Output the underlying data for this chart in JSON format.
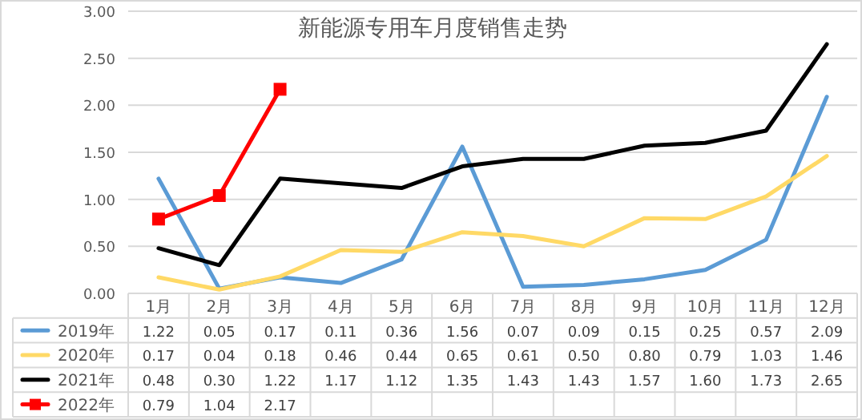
{
  "chart_data": {
    "type": "line",
    "title": "新能源专用车月度销售走势",
    "categories": [
      "1月",
      "2月",
      "3月",
      "4月",
      "5月",
      "6月",
      "7月",
      "8月",
      "9月",
      "10月",
      "11月",
      "12月"
    ],
    "series": [
      {
        "name": "2019年",
        "color": "#5b9bd5",
        "marker": "none",
        "values": [
          1.22,
          0.05,
          0.17,
          0.11,
          0.36,
          1.56,
          0.07,
          0.09,
          0.15,
          0.25,
          0.57,
          2.09
        ],
        "value_labels": [
          "1.22",
          "0.05",
          "0.17",
          "0.11",
          "0.36",
          "1.56",
          "0.07",
          "0.09",
          "0.15",
          "0.25",
          "0.57",
          "2.09"
        ]
      },
      {
        "name": "2020年",
        "color": "#ffd966",
        "marker": "none",
        "values": [
          0.17,
          0.04,
          0.18,
          0.46,
          0.44,
          0.65,
          0.61,
          0.5,
          0.8,
          0.79,
          1.03,
          1.46
        ],
        "value_labels": [
          "0.17",
          "0.04",
          "0.18",
          "0.46",
          "0.44",
          "0.65",
          "0.61",
          "0.50",
          "0.80",
          "0.79",
          "1.03",
          "1.46"
        ]
      },
      {
        "name": "2021年",
        "color": "#000000",
        "marker": "none",
        "values": [
          0.48,
          0.3,
          1.22,
          1.17,
          1.12,
          1.35,
          1.43,
          1.43,
          1.57,
          1.6,
          1.73,
          2.65
        ],
        "value_labels": [
          "0.48",
          "0.30",
          "1.22",
          "1.17",
          "1.12",
          "1.35",
          "1.43",
          "1.43",
          "1.57",
          "1.60",
          "1.73",
          "2.65"
        ]
      },
      {
        "name": "2022年",
        "color": "#ff0000",
        "marker": "square",
        "values": [
          0.79,
          1.04,
          2.17,
          null,
          null,
          null,
          null,
          null,
          null,
          null,
          null,
          null
        ],
        "value_labels": [
          "0.79",
          "1.04",
          "2.17",
          null,
          null,
          null,
          null,
          null,
          null,
          null,
          null,
          null
        ]
      }
    ],
    "ylim": [
      0,
      3
    ],
    "yticks": [
      {
        "value": 0,
        "label": "0.00"
      },
      {
        "value": 0.5,
        "label": "0.50"
      },
      {
        "value": 1,
        "label": "1.00"
      },
      {
        "value": 1.5,
        "label": "1.50"
      },
      {
        "value": 2,
        "label": "2.00"
      },
      {
        "value": 2.5,
        "label": "2.50"
      },
      {
        "value": 3,
        "label": "3.00"
      }
    ],
    "grid": "y",
    "legend": "bottom",
    "line_style": "solid"
  }
}
